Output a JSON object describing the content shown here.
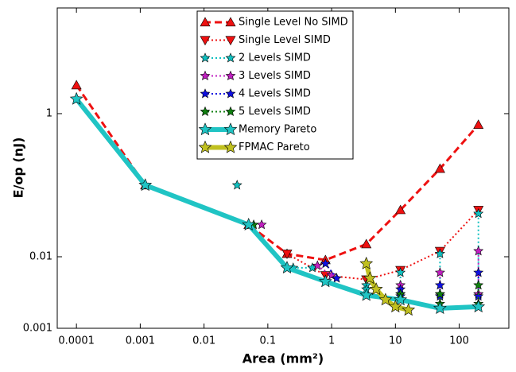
{
  "chart_data": {
    "type": "line",
    "xlabel": "Area (mm²)",
    "ylabel": "E/op (nJ)",
    "xscale": "log",
    "yscale": "log",
    "xlim": [
      5e-05,
      600
    ],
    "ylim": [
      0.001,
      30
    ],
    "xticks": [
      0.0001,
      0.001,
      0.01,
      0.1,
      1,
      10,
      100
    ],
    "yticks": [
      0.001,
      0.01,
      1
    ],
    "legend": "upper center",
    "series": [
      {
        "name": "Single Level No SIMD",
        "color": "#ee1111",
        "marker": "triangle-up",
        "dash": "dashed",
        "width": 3,
        "x": [
          0.0001,
          0.0012,
          0.05,
          0.2,
          0.8,
          3.5,
          12,
          50,
          200
        ],
        "values": [
          2.5,
          0.1,
          0.028,
          0.011,
          0.009,
          0.015,
          0.045,
          0.17,
          0.7
        ]
      },
      {
        "name": "Single Level SIMD",
        "color": "#ee1111",
        "marker": "triangle-down",
        "dash": "dotted",
        "width": 2,
        "x": [
          0.2,
          0.8,
          3.5,
          12,
          50,
          200
        ],
        "values": [
          0.011,
          0.0055,
          0.0048,
          0.0065,
          0.012,
          0.045
        ]
      },
      {
        "name": "2 Levels SIMD",
        "color": "#10c0c0",
        "marker": "star",
        "dash": "dotted",
        "width": 2,
        "x": [
          0.033,
          null,
          0.25,
          0.5,
          null,
          3.5,
          3.5,
          null,
          12,
          12,
          null,
          50,
          50,
          null,
          200,
          200
        ],
        "values": [
          0.1,
          null,
          0.007,
          0.007,
          null,
          0.004,
          0.0035,
          null,
          0.006,
          0.003,
          null,
          0.011,
          0.003,
          null,
          0.04,
          0.003
        ]
      },
      {
        "name": "3 Levels SIMD",
        "color": "#c020c0",
        "marker": "star",
        "dash": "dotted",
        "width": 2,
        "x": [
          0.08,
          null,
          0.6,
          1,
          null,
          12,
          12,
          null,
          50,
          50,
          null,
          200,
          200
        ],
        "values": [
          0.028,
          null,
          0.0075,
          0.0055,
          null,
          0.004,
          0.003,
          null,
          0.006,
          0.003,
          null,
          0.012,
          0.003
        ]
      },
      {
        "name": "4 Levels SIMD",
        "color": "#1010e0",
        "marker": "star",
        "dash": "dotted",
        "width": 2,
        "x": [
          0.8,
          1.2,
          null,
          12,
          12,
          null,
          50,
          50,
          null,
          200,
          200
        ],
        "values": [
          0.008,
          0.005,
          null,
          0.0035,
          0.0028,
          null,
          0.004,
          0.0028,
          null,
          0.006,
          0.0028
        ]
      },
      {
        "name": "5 Levels SIMD",
        "color": "#108010",
        "marker": "star",
        "dash": "dotted",
        "width": 2,
        "x": [
          0.06,
          null,
          12,
          12,
          null,
          50,
          50,
          null,
          200,
          200
        ],
        "values": [
          0.028,
          null,
          0.003,
          0.0025,
          null,
          0.003,
          0.0022,
          null,
          0.004,
          0.0022
        ]
      },
      {
        "name": "Memory Pareto",
        "color": "#20c4c4",
        "marker": "star",
        "dash": "solid",
        "width": 6,
        "x": [
          0.0001,
          0.0012,
          0.05,
          0.2,
          0.8,
          3.5,
          12,
          50,
          200
        ],
        "values": [
          1.6,
          0.1,
          0.028,
          0.007,
          0.0045,
          0.0029,
          0.0025,
          0.0019,
          0.002
        ]
      },
      {
        "name": "FPMAC Pareto",
        "color": "#c0c020",
        "marker": "star",
        "dash": "solid",
        "width": 6,
        "x": [
          3.5,
          4,
          5,
          7,
          10,
          16
        ],
        "values": [
          0.008,
          0.005,
          0.0035,
          0.0025,
          0.002,
          0.0018
        ]
      }
    ]
  }
}
